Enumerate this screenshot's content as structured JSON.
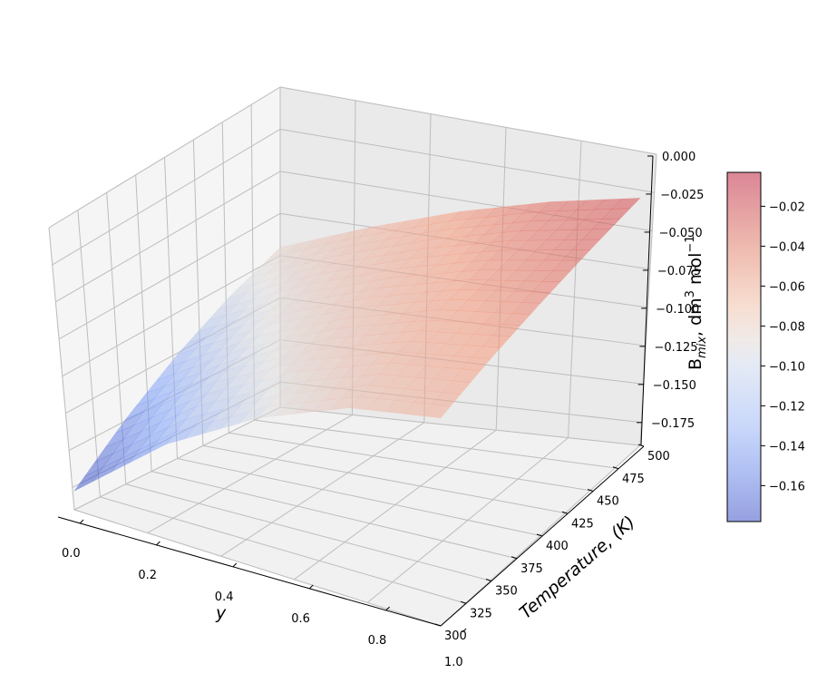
{
  "chart_data": {
    "type": "surface3d",
    "title": "",
    "xlabel": "y",
    "ylabel": "Temperature, (K)",
    "zlabel_main": "B",
    "zlabel_sub": "mix",
    "zlabel_unit": ", dm",
    "zlabel_sup3": "3",
    "zlabel_mol": " mol",
    "zlabel_supm1": "−1",
    "xlim": [
      0,
      1
    ],
    "ylim": [
      300,
      500
    ],
    "zlim": [
      -0.19,
      0.0
    ],
    "x_ticks": [
      0.0,
      0.2,
      0.4,
      0.6,
      0.8,
      1.0
    ],
    "x_tick_labels": [
      "0.0",
      "0.2",
      "0.4",
      "0.6",
      "0.8",
      "1.0"
    ],
    "y_ticks": [
      300,
      325,
      350,
      375,
      400,
      425,
      450,
      475,
      500
    ],
    "y_tick_labels": [
      "300",
      "325",
      "350",
      "375",
      "400",
      "425",
      "450",
      "475",
      "500"
    ],
    "z_ticks": [
      0.0,
      -0.025,
      -0.05,
      -0.075,
      -0.1,
      -0.125,
      -0.15,
      -0.175
    ],
    "z_tick_labels": [
      "0.000",
      "−0.025",
      "−0.050",
      "−0.075",
      "−0.100",
      "−0.125",
      "−0.150",
      "−0.175"
    ],
    "surface": {
      "y_grid": [
        0.0,
        0.25,
        0.5,
        0.75,
        1.0
      ],
      "T_grid": [
        300,
        350,
        400,
        450,
        500
      ],
      "B_values": [
        [
          -0.178,
          -0.148,
          -0.122,
          -0.1,
          -0.082
        ],
        [
          -0.13,
          -0.108,
          -0.09,
          -0.075,
          -0.062
        ],
        [
          -0.095,
          -0.079,
          -0.066,
          -0.055,
          -0.045
        ],
        [
          -0.07,
          -0.058,
          -0.048,
          -0.04,
          -0.032
        ],
        [
          -0.058,
          -0.047,
          -0.038,
          -0.03,
          -0.023
        ]
      ]
    },
    "colormap": "coolwarm",
    "alpha": 0.55,
    "colorbar": {
      "range": [
        -0.178,
        -0.003
      ],
      "ticks": [
        -0.02,
        -0.04,
        -0.06,
        -0.08,
        -0.1,
        -0.12,
        -0.14,
        -0.16
      ],
      "tick_labels": [
        "−0.02",
        "−0.04",
        "−0.06",
        "−0.08",
        "−0.10",
        "−0.12",
        "−0.14",
        "−0.16"
      ],
      "placement": "right"
    },
    "grid": true
  }
}
